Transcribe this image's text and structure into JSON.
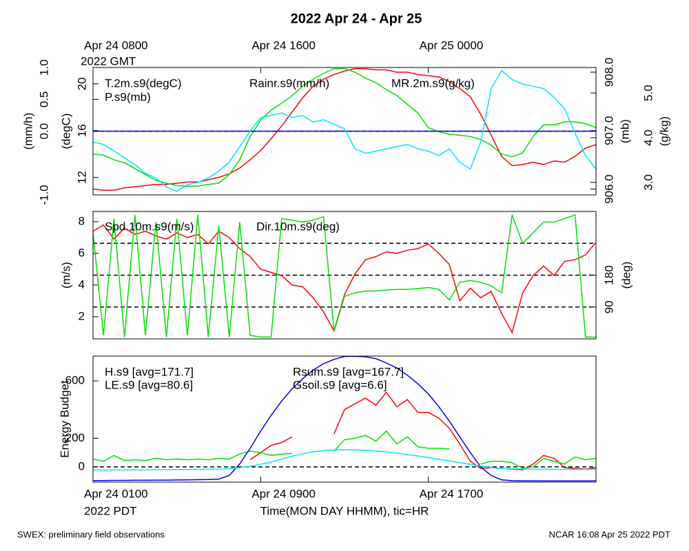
{
  "title": "2022 Apr 24 - Apr 25",
  "footer_left": "SWEX: preliminary field observations",
  "footer_right": "NCAR 16:08 Apr 25 2022 PDT",
  "chart_data": [
    {
      "type": "line",
      "x": [
        0,
        0.5,
        1,
        1.5,
        2,
        2.5,
        3,
        3.5,
        4,
        4.5,
        5,
        5.5,
        6,
        6.5,
        7,
        7.5,
        8,
        8.5,
        9,
        9.5,
        10,
        10.5,
        11,
        11.5,
        12,
        12.5,
        13,
        13.5,
        14,
        14.5,
        15,
        15.5,
        16,
        16.5,
        17,
        17.5,
        18,
        18.5,
        19,
        19.5,
        20,
        20.5,
        21,
        21.5,
        22,
        22.5,
        23,
        23.5,
        24
      ],
      "xlim": [
        0,
        24
      ],
      "x2ticks": [
        {
          "value": 0,
          "label": "Apr 24 0800"
        },
        {
          "value": 8,
          "label": "Apr 24 1600"
        },
        {
          "value": 16,
          "label": "Apr 25 0000"
        }
      ],
      "x2note": "2022 GMT",
      "axes": [
        {
          "label": "(mm/h)",
          "lim": [
            -1,
            1
          ],
          "ticks": [
            {
              "value": -1,
              "label": "-1.0"
            },
            {
              "value": 0,
              "label": "0.0"
            },
            {
              "value": 0.5,
              "label": "0.5"
            },
            {
              "value": 1,
              "label": "1.0"
            }
          ]
        },
        {
          "label": "(degC)",
          "lim": [
            10.5,
            21.4
          ],
          "ticks": [
            12,
            16,
            20
          ]
        },
        {
          "label": "(mb)",
          "lim": [
            905.9,
            908.08
          ],
          "ticks": [
            {
              "value": 906,
              "label": "906.0"
            },
            {
              "value": 907,
              "label": "907.0"
            },
            {
              "value": 908,
              "label": "908.0"
            }
          ]
        },
        {
          "label": "(g/kg)",
          "lim": [
            2.72,
            5.57
          ],
          "ticks": [
            {
              "value": 3,
              "label": "3.0"
            },
            {
              "value": 4,
              "label": "4.0"
            },
            {
              "value": 5,
              "label": "5.0"
            }
          ]
        }
      ],
      "ref_lines": [
        {
          "axis": 0,
          "value": 0
        }
      ],
      "series": [
        {
          "name": "T.2m.s9(degC)",
          "color": "#ff0000",
          "axis": 1,
          "values": [
            11.0,
            10.9,
            10.9,
            11.1,
            11.2,
            11.3,
            11.4,
            11.4,
            11.5,
            11.6,
            11.6,
            11.8,
            12.0,
            12.3,
            12.8,
            13.5,
            14.3,
            15.3,
            16.4,
            17.6,
            18.8,
            19.8,
            20.4,
            20.8,
            21.1,
            21.3,
            21.3,
            21.2,
            21.2,
            21.0,
            21.0,
            20.8,
            20.7,
            20.6,
            20.2,
            19.6,
            18.9,
            17.4,
            15.6,
            13.8,
            13.0,
            13.1,
            13.3,
            13.1,
            13.4,
            13.3,
            13.8,
            14.5,
            14.8
          ]
        },
        {
          "name": "P.s9(mb)",
          "color": "#00e000",
          "axis": 2,
          "values": [
            906.6,
            906.58,
            906.5,
            906.45,
            906.35,
            906.25,
            906.15,
            906.1,
            906.06,
            906.05,
            906.05,
            906.08,
            906.1,
            906.25,
            906.5,
            906.9,
            907.18,
            907.35,
            907.47,
            907.6,
            907.76,
            907.88,
            907.98,
            908.06,
            908.06,
            908.0,
            907.9,
            907.82,
            907.7,
            907.6,
            907.45,
            907.3,
            907.05,
            906.98,
            906.94,
            906.92,
            906.9,
            906.85,
            906.75,
            906.6,
            906.55,
            906.62,
            906.9,
            907.1,
            907.1,
            907.15,
            907.15,
            907.12,
            907.05
          ]
        },
        {
          "name": "Rainr.s9(mm/h)",
          "color": "#0000ff",
          "axis": 0,
          "values": [
            0,
            0,
            0,
            0,
            0,
            0,
            0,
            0,
            0,
            0,
            0,
            0,
            0,
            0,
            0,
            0,
            0,
            0,
            0,
            0,
            0,
            0,
            0,
            0,
            0,
            0,
            0,
            0,
            0,
            0,
            0,
            0,
            0,
            0,
            0,
            0,
            0,
            0,
            0,
            0,
            0,
            0,
            0,
            0,
            0,
            0,
            0,
            0,
            0
          ]
        },
        {
          "name": "MR.2m.s9(g/kg)",
          "color": "#00e5ff",
          "axis": 3,
          "values": [
            3.9,
            3.85,
            3.7,
            3.55,
            3.4,
            3.2,
            3.1,
            2.9,
            2.8,
            2.95,
            3.0,
            3.1,
            3.25,
            3.45,
            3.8,
            4.15,
            4.45,
            4.5,
            4.55,
            4.45,
            4.5,
            4.35,
            4.4,
            4.3,
            4.2,
            3.75,
            3.65,
            3.7,
            3.75,
            3.8,
            3.85,
            3.75,
            3.7,
            3.6,
            3.75,
            3.45,
            3.3,
            3.9,
            5.1,
            5.5,
            5.3,
            5.2,
            5.15,
            5.1,
            4.9,
            4.65,
            4.1,
            3.6,
            3.3
          ]
        }
      ]
    },
    {
      "type": "line",
      "x": [
        0,
        0.5,
        1,
        1.5,
        2,
        2.5,
        3,
        3.5,
        4,
        4.5,
        5,
        5.5,
        6,
        6.5,
        7,
        7.5,
        8,
        8.5,
        9,
        9.5,
        10,
        10.5,
        11,
        11.5,
        12,
        12.5,
        13,
        13.5,
        14,
        14.5,
        15,
        15.5,
        16,
        16.5,
        17,
        17.5,
        18,
        18.5,
        19,
        19.5,
        20,
        20.5,
        21,
        21.5,
        22,
        22.5,
        23,
        23.5,
        24
      ],
      "xlim": [
        0,
        24
      ],
      "axes": [
        {
          "label": "(m/s)",
          "lim": [
            0.6,
            8.65
          ],
          "ticks": [
            2,
            4,
            6,
            8
          ]
        },
        {
          "label": "(deg)",
          "lim": [
            0,
            360
          ],
          "ticks": [
            90,
            180
          ]
        }
      ],
      "ref_lines": [
        {
          "axis": 1,
          "value": 90
        },
        {
          "axis": 1,
          "value": 180
        },
        {
          "axis": 1,
          "value": 270
        }
      ],
      "series": [
        {
          "name": "Spd.10m.s9(m/s)",
          "color": "#ff0000",
          "axis": 0,
          "values": [
            7.4,
            7.8,
            6.9,
            7.6,
            7.2,
            7.4,
            7.1,
            6.9,
            7.3,
            7.0,
            7.2,
            6.6,
            7.4,
            7.0,
            6.3,
            5.8,
            5.0,
            4.8,
            4.6,
            4.0,
            3.9,
            3.2,
            2.3,
            1.1,
            3.4,
            4.7,
            5.6,
            5.8,
            6.1,
            6.0,
            6.2,
            6.3,
            6.6,
            6.0,
            5.3,
            3.0,
            3.8,
            3.2,
            3.6,
            2.2,
            1.0,
            3.5,
            4.6,
            5.2,
            4.6,
            5.5,
            5.6,
            5.9,
            6.7
          ]
        },
        {
          "name": "Dir.10m.s9(deg)",
          "color": "#00e000",
          "axis": 1,
          "values": [
            300,
            10,
            340,
            5,
            350,
            10,
            330,
            5,
            340,
            10,
            350,
            5,
            320,
            5,
            330,
            10,
            5,
            5,
            340,
            335,
            330,
            335,
            345,
            20,
            120,
            130,
            135,
            135,
            138,
            140,
            140,
            142,
            145,
            140,
            110,
            160,
            165,
            160,
            150,
            130,
            350,
            270,
            300,
            330,
            330,
            340,
            350,
            5,
            5
          ]
        }
      ]
    },
    {
      "type": "line",
      "x": [
        0,
        0.5,
        1,
        1.5,
        2,
        2.5,
        3,
        3.5,
        4,
        4.5,
        5,
        5.5,
        6,
        6.5,
        7,
        7.5,
        8,
        8.5,
        9,
        9.5,
        10,
        10.5,
        11,
        11.5,
        12,
        12.5,
        13,
        13.5,
        14,
        14.5,
        15,
        15.5,
        16,
        16.5,
        17,
        17.5,
        18,
        18.5,
        19,
        19.5,
        20,
        20.5,
        21,
        21.5,
        22,
        22.5,
        23,
        23.5,
        24
      ],
      "xlim": [
        0,
        24
      ],
      "xticks": [
        {
          "value": 0,
          "label": "Apr 24 0100"
        },
        {
          "value": 8,
          "label": "Apr 24 0900"
        },
        {
          "value": 16,
          "label": "Apr 24 1700"
        }
      ],
      "xnote": "2022 PDT",
      "xlabel": "Time(MON DAY HHMM), tic=HR",
      "axes": [
        {
          "label": "Energy Budget",
          "lim": [
            -106,
            773
          ],
          "ticks": [
            0,
            200,
            600
          ]
        }
      ],
      "ref_lines": [
        {
          "axis": 0,
          "value": 0
        }
      ],
      "series": [
        {
          "name": "H.s9 [avg=171.7]",
          "color": "#ff0000",
          "axis": 0,
          "values": [
            null,
            null,
            null,
            null,
            null,
            null,
            null,
            null,
            null,
            null,
            null,
            null,
            null,
            null,
            null,
            50,
            100,
            150,
            170,
            210,
            null,
            null,
            null,
            230,
            400,
            440,
            480,
            430,
            520,
            420,
            470,
            380,
            380,
            340,
            270,
            160,
            40,
            -10,
            -5,
            -10,
            -15,
            -20,
            20,
            80,
            60,
            -5,
            -10,
            -15,
            -5
          ]
        },
        {
          "name": "LE.s9 [avg=80.6]",
          "color": "#00e000",
          "axis": 0,
          "values": [
            55,
            40,
            80,
            45,
            50,
            45,
            60,
            50,
            55,
            50,
            55,
            50,
            60,
            55,
            90,
            110,
            100,
            80,
            90,
            95,
            null,
            null,
            null,
            110,
            190,
            200,
            220,
            180,
            250,
            160,
            210,
            140,
            130,
            130,
            125,
            null,
            null,
            20,
            40,
            40,
            30,
            -10,
            0,
            60,
            40,
            20,
            70,
            50,
            60
          ]
        },
        {
          "name": "Rsum.s9 [avg=167.7]",
          "color": "#0000dd",
          "axis": 0,
          "values": [
            -95,
            -95,
            -94,
            -94,
            -93,
            -93,
            -92,
            -92,
            -91,
            -90,
            -89,
            -88,
            -85,
            -60,
            20,
            130,
            250,
            360,
            460,
            545,
            615,
            675,
            720,
            750,
            770,
            772,
            768,
            755,
            725,
            690,
            640,
            580,
            510,
            420,
            320,
            210,
            100,
            0,
            -60,
            -90,
            -96,
            -97,
            -97,
            -98,
            -98,
            -98,
            -98,
            -98,
            -98
          ]
        },
        {
          "name": "Gsoil.s9 [avg=6.6]",
          "color": "#00e5ff",
          "axis": 0,
          "values": [
            -22,
            -22,
            -21,
            -21,
            -20,
            -20,
            -19,
            -19,
            -18,
            -18,
            -17,
            -16,
            -15,
            -12,
            -5,
            5,
            18,
            35,
            55,
            75,
            92,
            105,
            113,
            118,
            120,
            119,
            116,
            111,
            104,
            96,
            86,
            76,
            65,
            54,
            42,
            30,
            18,
            6,
            -4,
            -10,
            -13,
            -15,
            -16,
            -16,
            -17,
            -17,
            -17,
            -17,
            -16
          ]
        }
      ]
    }
  ]
}
